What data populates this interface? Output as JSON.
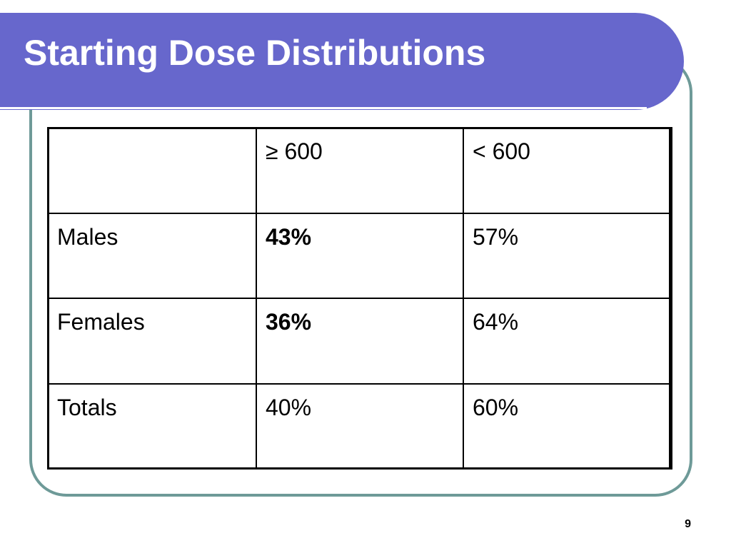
{
  "slide": {
    "title": "Starting Dose Distributions",
    "page_number": "9"
  },
  "colors": {
    "title_bar": "#6767cc",
    "frame_border": "#6e9a98"
  },
  "table": {
    "header": [
      "",
      "≥ 600",
      "< 600"
    ],
    "rows": [
      {
        "label": "Males",
        "ge600": "43%",
        "lt600": "57%"
      },
      {
        "label": "Females",
        "ge600": "36%",
        "lt600": "64%"
      },
      {
        "label": "Totals",
        "ge600": "40%",
        "lt600": "60%"
      }
    ]
  }
}
